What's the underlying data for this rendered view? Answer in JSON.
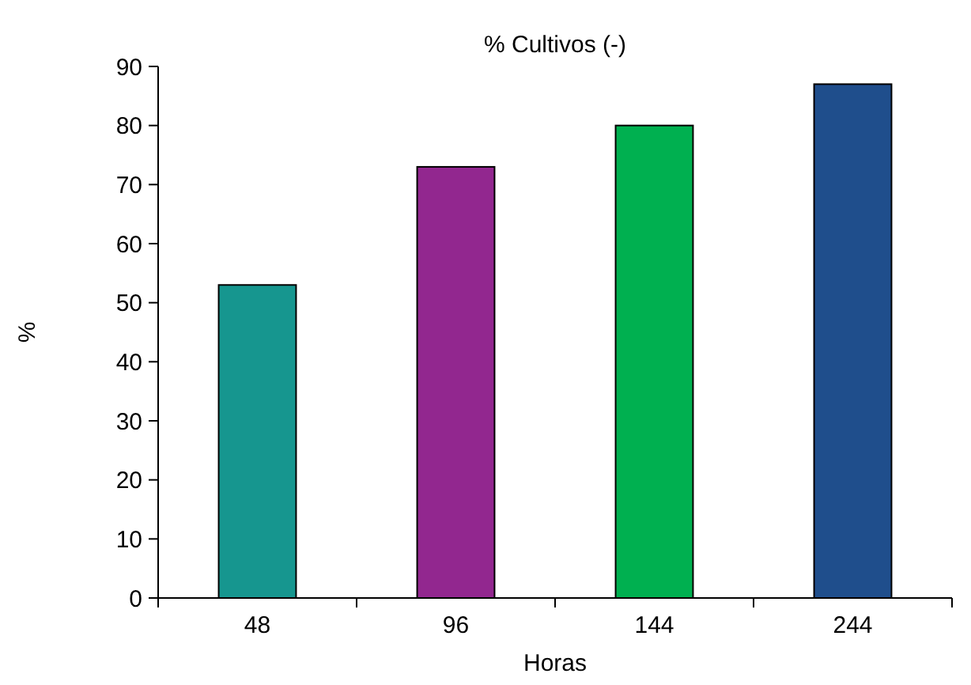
{
  "chart_data": {
    "type": "bar",
    "title": "% Cultivos (-)",
    "xlabel": "Horas",
    "ylabel": "%",
    "categories": [
      "48",
      "96",
      "144",
      "244"
    ],
    "values": [
      53,
      73,
      80,
      87
    ],
    "colors": [
      "#16968f",
      "#92278f",
      "#00b050",
      "#1f4e8c"
    ],
    "ylim": [
      0,
      90
    ],
    "yticks": [
      0,
      10,
      20,
      30,
      40,
      50,
      60,
      70,
      80,
      90
    ],
    "grid": false
  }
}
